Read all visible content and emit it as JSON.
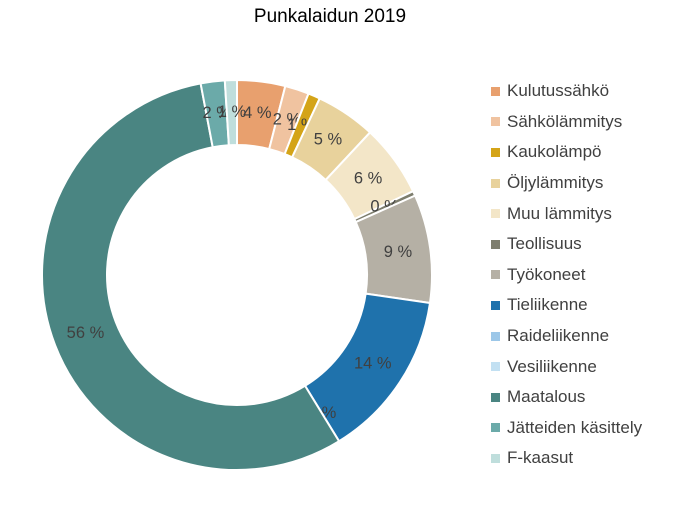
{
  "chart_data": {
    "type": "pie",
    "donut": true,
    "title": "Punkalaidun 2019",
    "legend_position": "right",
    "slices": [
      {
        "name": "Kulutussähkö",
        "value": 4,
        "label": "4 %",
        "color": "#E8A06E"
      },
      {
        "name": "Sähkölämmitys",
        "value": 2,
        "label": "2 %",
        "color": "#F0C3A0"
      },
      {
        "name": "Kaukolämpö",
        "value": 1,
        "label": "1 %",
        "color": "#D4A418"
      },
      {
        "name": "Öljylämmitys",
        "value": 5,
        "label": "5 %",
        "color": "#E8D29C"
      },
      {
        "name": "Muu lämmitys",
        "value": 6,
        "label": "6 %",
        "color": "#F3E6C8"
      },
      {
        "name": "Teollisuus",
        "value": 0.4,
        "label": "0 %",
        "color": "#7E7E6E"
      },
      {
        "name": "Työkoneet",
        "value": 9,
        "label": "9 %",
        "color": "#B5B0A5"
      },
      {
        "name": "Tieliikenne",
        "value": 14,
        "label": "14 %",
        "color": "#1F72AC"
      },
      {
        "name": "Raideliikenne",
        "value": 0,
        "label": "0 %",
        "color": "#9CC7E8"
      },
      {
        "name": "Vesiliikenne",
        "value": 0,
        "label": "",
        "color": "#C2E0F2"
      },
      {
        "name": "Maatalous",
        "value": 56,
        "label": "56 %",
        "color": "#4A8582"
      },
      {
        "name": "Jätteiden käsittely",
        "value": 2,
        "label": "2 %",
        "color": "#6BAAA9"
      },
      {
        "name": "F-kaasut",
        "value": 1,
        "label": "1 %",
        "color": "#BFDEDC"
      }
    ]
  }
}
